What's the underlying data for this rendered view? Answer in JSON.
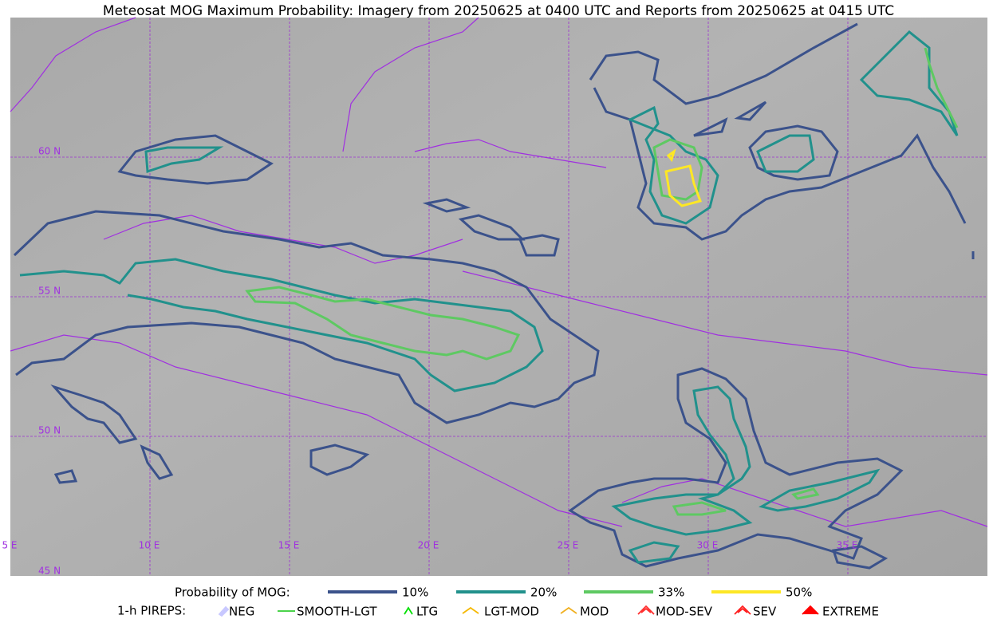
{
  "title": "Meteosat MOG Maximum Probability: Imagery from 20250625 at 0400 UTC and Reports from 20250625 at 0415 UTC",
  "grid_labels": {
    "lat": [
      "60 N",
      "55 N",
      "50 N",
      "45 N"
    ],
    "lon": [
      "5 E",
      "10 E",
      "15 E",
      "20 E",
      "25 E",
      "30 E",
      "35 E"
    ]
  },
  "legend": {
    "probability": {
      "label": "Probability of MOG:",
      "items": [
        {
          "label": "10%",
          "color": "#3b528b"
        },
        {
          "label": "20%",
          "color": "#21918c"
        },
        {
          "label": "33%",
          "color": "#5ec962"
        },
        {
          "label": "50%",
          "color": "#fde725"
        }
      ]
    },
    "pireps": {
      "label": "1-h PIREPS:",
      "items": [
        {
          "label": "NEG",
          "color": "#c8c8ff"
        },
        {
          "label": "SMOOTH-LGT",
          "color": "#32cd32"
        },
        {
          "label": "LTG",
          "color": "#00e000"
        },
        {
          "label": "LGT-MOD",
          "color": "#f5b800"
        },
        {
          "label": "MOD",
          "color": "#f0b020"
        },
        {
          "label": "MOD-SEV",
          "color": "#ff3030"
        },
        {
          "label": "SEV",
          "color": "#ff2020"
        },
        {
          "label": "EXTREME",
          "color": "#ff0000"
        }
      ]
    }
  }
}
